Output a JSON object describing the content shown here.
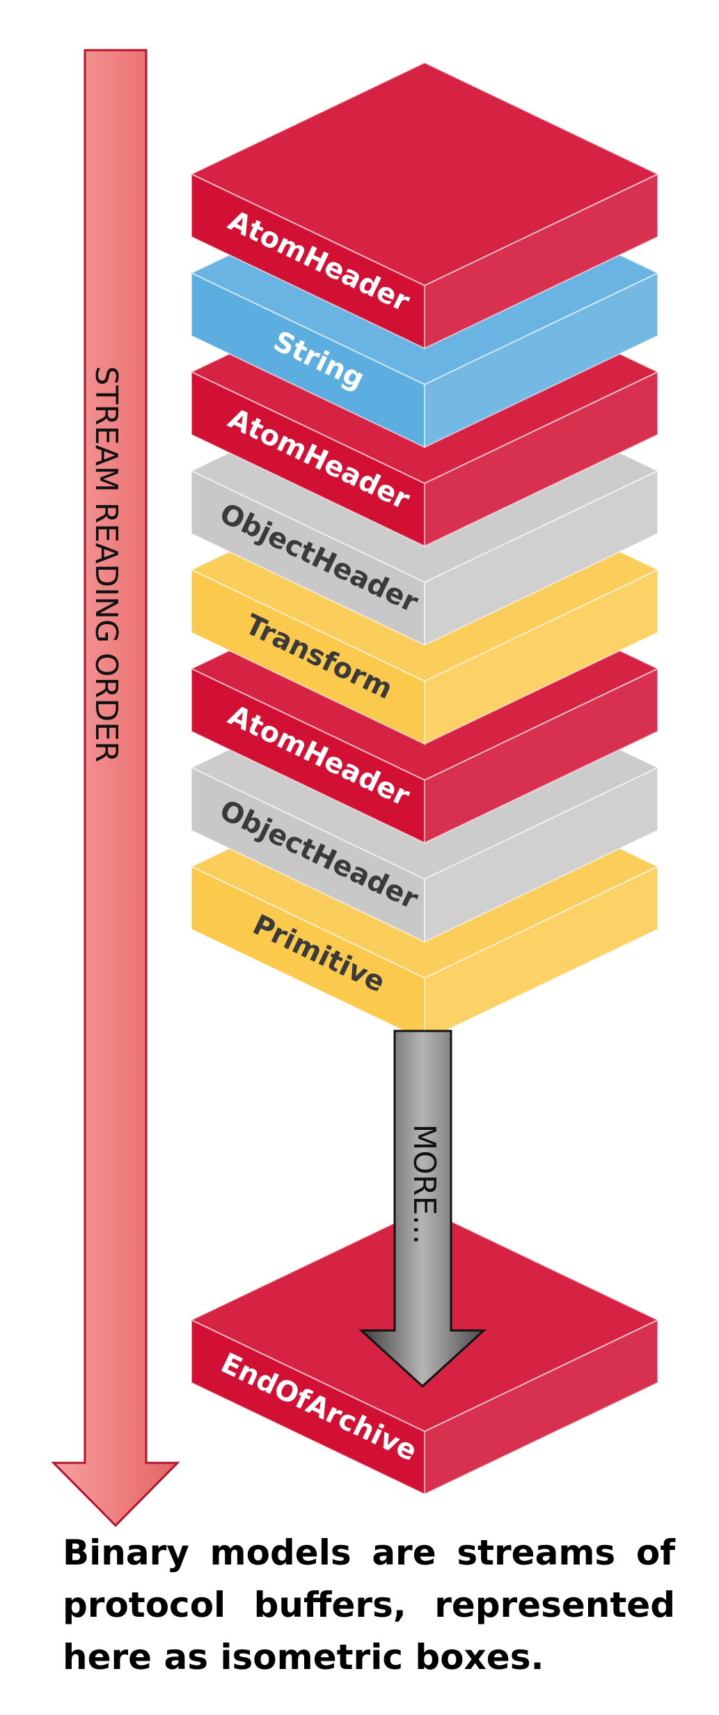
{
  "arrow": {
    "label": "STREAM READING ORDER",
    "color": "#ee7b7b"
  },
  "more": {
    "label": "MORE..."
  },
  "stack": [
    {
      "label": "AtomHeader",
      "color": "#d21034"
    },
    {
      "label": "String",
      "color": "#5caee0"
    },
    {
      "label": "AtomHeader",
      "color": "#d21034"
    },
    {
      "label": "ObjectHeader",
      "color": "#c8c8c8"
    },
    {
      "label": "Transform",
      "color": "#fbc94c"
    },
    {
      "label": "AtomHeader",
      "color": "#d21034"
    },
    {
      "label": "ObjectHeader",
      "color": "#c8c8c8"
    },
    {
      "label": "Primitive",
      "color": "#fbc94c"
    }
  ],
  "end_box": {
    "label": "EndOfArchive",
    "color": "#d21034"
  },
  "caption": "Binary models are streams of protocol buffers, represented here as isometric boxes."
}
